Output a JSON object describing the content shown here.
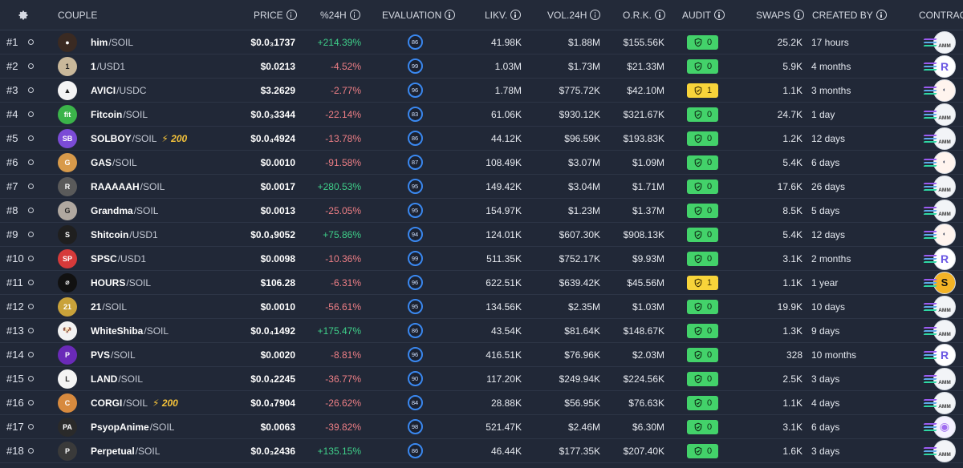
{
  "header": {
    "settings_icon": "gear-icon",
    "couple": "COUPLE",
    "price": "PRICE",
    "change": "%24H",
    "evaluation": "EVALUATION",
    "liquidity": "LIKV.",
    "volume": "VOL.24H",
    "ork": "O.R.K.",
    "audit": "AUDIT",
    "swaps": "SWAPS",
    "created": "CREATED BY",
    "contract": "CONTRACT"
  },
  "colors": {
    "positive": "#3fd08a",
    "negative": "#ef7f86",
    "audit_ok": "#43d26a",
    "audit_warn": "#f8d43a",
    "score_ring": "#3a88f0"
  },
  "rows": [
    {
      "rank": "#1",
      "base": "him",
      "quote": "SOIL",
      "bonus": "",
      "price": "$0.0₃1737",
      "change": "+214.39%",
      "dir": "pos",
      "score": "86",
      "liq": "41.98K",
      "vol": "$1.88M",
      "ork": "$155.56K",
      "audit": "0",
      "audit_type": "ok",
      "swaps": "25.2K",
      "created": "17 hours",
      "contract": "amm",
      "avatar_color": "#3a2a22",
      "avatar_icon": "token-avatar-him",
      "avatar_text": "●"
    },
    {
      "rank": "#2",
      "base": "1",
      "quote": "USD1",
      "bonus": "",
      "price": "$0.0213",
      "change": "-4.52%",
      "dir": "neg",
      "score": "99",
      "liq": "1.03M",
      "vol": "$1.73M",
      "ork": "$21.33M",
      "audit": "0",
      "audit_type": "ok",
      "swaps": "5.9K",
      "created": "4 months",
      "contract": "raydium",
      "avatar_color": "#c9b89a",
      "avatar_icon": "token-avatar-1",
      "avatar_text": "1"
    },
    {
      "rank": "#3",
      "base": "AVICI",
      "quote": "USDC",
      "bonus": "",
      "price": "$3.2629",
      "change": "-2.77%",
      "dir": "neg",
      "score": "96",
      "liq": "1.78M",
      "vol": "$775.72K",
      "ork": "$42.10M",
      "audit": "1",
      "audit_type": "warn",
      "swaps": "1.1K",
      "created": "3 months",
      "contract": "orca",
      "avatar_color": "#f4f4f4",
      "avatar_icon": "token-avatar-avici",
      "avatar_text": "▲"
    },
    {
      "rank": "#4",
      "base": "Fitcoin",
      "quote": "SOIL",
      "bonus": "",
      "price": "$0.0₃3344",
      "change": "-22.14%",
      "dir": "neg",
      "score": "83",
      "liq": "61.06K",
      "vol": "$930.12K",
      "ork": "$321.67K",
      "audit": "0",
      "audit_type": "ok",
      "swaps": "24.7K",
      "created": "1 day",
      "contract": "amm",
      "avatar_color": "#3bb34a",
      "avatar_icon": "token-avatar-fitcoin",
      "avatar_text": "fit"
    },
    {
      "rank": "#5",
      "base": "SOLBOY",
      "quote": "SOIL",
      "bonus": "200",
      "price": "$0.0₄4924",
      "change": "-13.78%",
      "dir": "neg",
      "score": "86",
      "liq": "44.12K",
      "vol": "$96.59K",
      "ork": "$193.83K",
      "audit": "0",
      "audit_type": "ok",
      "swaps": "1.2K",
      "created": "12 days",
      "contract": "amm",
      "avatar_color": "#7b4bd6",
      "avatar_icon": "token-avatar-solboy",
      "avatar_text": "SB"
    },
    {
      "rank": "#6",
      "base": "GAS",
      "quote": "SOIL",
      "bonus": "",
      "price": "$0.0010",
      "change": "-91.58%",
      "dir": "neg",
      "score": "87",
      "liq": "108.49K",
      "vol": "$3.07M",
      "ork": "$1.09M",
      "audit": "0",
      "audit_type": "ok",
      "swaps": "5.4K",
      "created": "6 days",
      "contract": "orca",
      "avatar_color": "#d89a4a",
      "avatar_icon": "token-avatar-gas",
      "avatar_text": "G"
    },
    {
      "rank": "#7",
      "base": "RAAAAAH",
      "quote": "SOIL",
      "bonus": "",
      "price": "$0.0017",
      "change": "+280.53%",
      "dir": "pos",
      "score": "95",
      "liq": "149.42K",
      "vol": "$3.04M",
      "ork": "$1.71M",
      "audit": "0",
      "audit_type": "ok",
      "swaps": "17.6K",
      "created": "26 days",
      "contract": "amm",
      "avatar_color": "#5a5a5a",
      "avatar_icon": "token-avatar-raaaaah",
      "avatar_text": "R"
    },
    {
      "rank": "#8",
      "base": "Grandma",
      "quote": "SOIL",
      "bonus": "",
      "price": "$0.0013",
      "change": "-25.05%",
      "dir": "neg",
      "score": "95",
      "liq": "154.97K",
      "vol": "$1.23M",
      "ork": "$1.37M",
      "audit": "0",
      "audit_type": "ok",
      "swaps": "8.5K",
      "created": "5 days",
      "contract": "amm",
      "avatar_color": "#b0a8a0",
      "avatar_icon": "token-avatar-grandma",
      "avatar_text": "G"
    },
    {
      "rank": "#9",
      "base": "Shitcoin",
      "quote": "USD1",
      "bonus": "",
      "price": "$0.0₄9052",
      "change": "+75.86%",
      "dir": "pos",
      "score": "94",
      "liq": "124.01K",
      "vol": "$607.30K",
      "ork": "$908.13K",
      "audit": "0",
      "audit_type": "ok",
      "swaps": "5.4K",
      "created": "12 days",
      "contract": "orca",
      "avatar_color": "#1f1f1f",
      "avatar_icon": "token-avatar-shitcoin",
      "avatar_text": "S"
    },
    {
      "rank": "#10",
      "base": "SPSC",
      "quote": "USD1",
      "bonus": "",
      "price": "$0.0098",
      "change": "-10.36%",
      "dir": "neg",
      "score": "99",
      "liq": "511.35K",
      "vol": "$752.17K",
      "ork": "$9.93M",
      "audit": "0",
      "audit_type": "ok",
      "swaps": "3.1K",
      "created": "2 months",
      "contract": "raydium",
      "avatar_color": "#d63a3a",
      "avatar_icon": "token-avatar-spsc",
      "avatar_text": "SP"
    },
    {
      "rank": "#11",
      "base": "HOURS",
      "quote": "SOIL",
      "bonus": "",
      "price": "$106.28",
      "change": "-6.31%",
      "dir": "neg",
      "score": "96",
      "liq": "622.51K",
      "vol": "$639.42K",
      "ork": "$45.56M",
      "audit": "1",
      "audit_type": "warn",
      "swaps": "1.1K",
      "created": "1 year",
      "contract": "sun",
      "avatar_color": "#111111",
      "avatar_icon": "token-avatar-hours",
      "avatar_text": "⌀"
    },
    {
      "rank": "#12",
      "base": "21",
      "quote": "SOIL",
      "bonus": "",
      "price": "$0.0010",
      "change": "-56.61%",
      "dir": "neg",
      "score": "95",
      "liq": "134.56K",
      "vol": "$2.35M",
      "ork": "$1.03M",
      "audit": "0",
      "audit_type": "ok",
      "swaps": "19.9K",
      "created": "10 days",
      "contract": "amm",
      "avatar_color": "#c9a23a",
      "avatar_icon": "token-avatar-21",
      "avatar_text": "21"
    },
    {
      "rank": "#13",
      "base": "WhiteShiba",
      "quote": "SOIL",
      "bonus": "",
      "price": "$0.0₄1492",
      "change": "+175.47%",
      "dir": "pos",
      "score": "86",
      "liq": "43.54K",
      "vol": "$81.64K",
      "ork": "$148.67K",
      "audit": "0",
      "audit_type": "ok",
      "swaps": "1.3K",
      "created": "9 days",
      "contract": "amm",
      "avatar_color": "#f2f2f2",
      "avatar_icon": "token-avatar-whiteshiba",
      "avatar_text": "🐶"
    },
    {
      "rank": "#14",
      "base": "PVS",
      "quote": "SOIL",
      "bonus": "",
      "price": "$0.0020",
      "change": "-8.81%",
      "dir": "neg",
      "score": "96",
      "liq": "416.51K",
      "vol": "$76.96K",
      "ork": "$2.03M",
      "audit": "0",
      "audit_type": "ok",
      "swaps": "328",
      "created": "10 months",
      "contract": "raydium",
      "avatar_color": "#6a2ab8",
      "avatar_icon": "token-avatar-pvs",
      "avatar_text": "P"
    },
    {
      "rank": "#15",
      "base": "LAND",
      "quote": "SOIL",
      "bonus": "",
      "price": "$0.0₄2245",
      "change": "-36.77%",
      "dir": "neg",
      "score": "90",
      "liq": "117.20K",
      "vol": "$249.94K",
      "ork": "$224.56K",
      "audit": "0",
      "audit_type": "ok",
      "swaps": "2.5K",
      "created": "3 days",
      "contract": "amm",
      "avatar_color": "#f4f4f4",
      "avatar_icon": "token-avatar-land",
      "avatar_text": "L"
    },
    {
      "rank": "#16",
      "base": "CORGI",
      "quote": "SOIL",
      "bonus": "200",
      "price": "$0.0₄7904",
      "change": "-26.62%",
      "dir": "neg",
      "score": "84",
      "liq": "28.88K",
      "vol": "$56.95K",
      "ork": "$76.63K",
      "audit": "0",
      "audit_type": "ok",
      "swaps": "1.1K",
      "created": "4 days",
      "contract": "amm",
      "avatar_color": "#d78a3e",
      "avatar_icon": "token-avatar-corgi",
      "avatar_text": "C"
    },
    {
      "rank": "#17",
      "base": "PsyopAnime",
      "quote": "SOIL",
      "bonus": "",
      "price": "$0.0063",
      "change": "-39.82%",
      "dir": "neg",
      "score": "98",
      "liq": "521.47K",
      "vol": "$2.46M",
      "ork": "$6.30M",
      "audit": "0",
      "audit_type": "ok",
      "swaps": "3.1K",
      "created": "6 days",
      "contract": "pump",
      "avatar_color": "#2a2a2a",
      "avatar_icon": "token-avatar-psyopanime",
      "avatar_text": "PA"
    },
    {
      "rank": "#18",
      "base": "Perpetual",
      "quote": "SOIL",
      "bonus": "",
      "price": "$0.0₃2436",
      "change": "+135.15%",
      "dir": "pos",
      "score": "86",
      "liq": "46.44K",
      "vol": "$177.35K",
      "ork": "$207.40K",
      "audit": "0",
      "audit_type": "ok",
      "swaps": "1.6K",
      "created": "3 days",
      "contract": "amm",
      "avatar_color": "#3a3a3a",
      "avatar_icon": "token-avatar-perpetual",
      "avatar_text": "P"
    }
  ]
}
